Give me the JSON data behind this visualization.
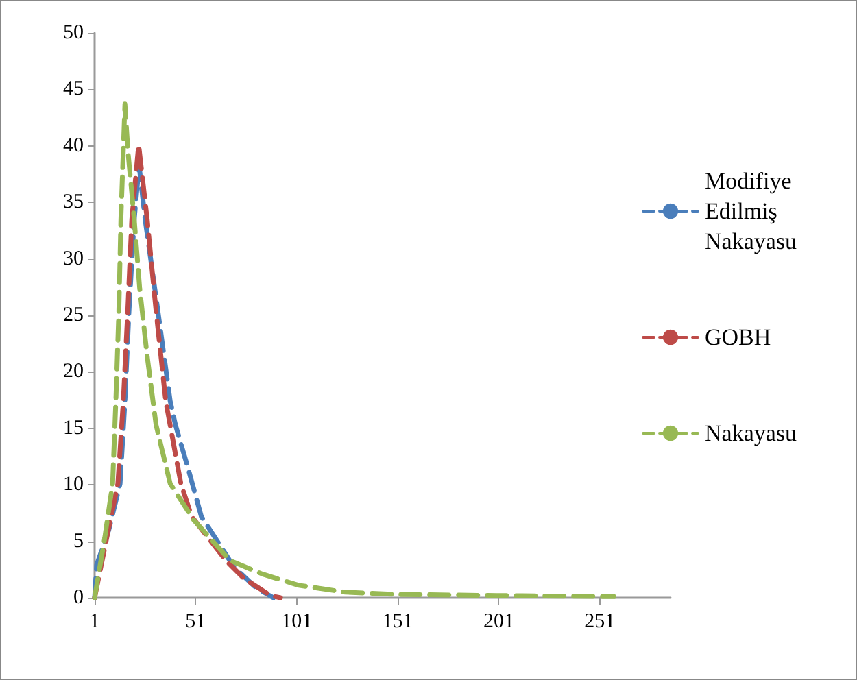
{
  "chart_data": {
    "type": "line",
    "line_style": "dashed",
    "marker": "none",
    "grid": false,
    "legend": "right",
    "xlim": [
      1,
      286
    ],
    "xticks": [
      1,
      51,
      101,
      151,
      201,
      251
    ],
    "ylim": [
      0,
      50
    ],
    "yticks": [
      0,
      5,
      10,
      15,
      20,
      25,
      30,
      35,
      40,
      45,
      50
    ],
    "series": [
      {
        "name": "Modifiye Edilmiş Nakayasu",
        "color": "#4a7ebb",
        "x": [
          1,
          2,
          8,
          13.6,
          16,
          18,
          20.6,
          23,
          26,
          32.3,
          38.4,
          41,
          47.5,
          53.8,
          62.5,
          70,
          80.8,
          89.5
        ],
        "values": [
          0,
          2.9,
          6,
          10.1,
          17.4,
          25.4,
          33.5,
          38.3,
          33.5,
          25.4,
          17.4,
          15.3,
          11.3,
          7.2,
          4.8,
          2.7,
          0.9,
          0
        ]
      },
      {
        "name": "GOBH",
        "color": "#be4b48",
        "x": [
          1,
          7,
          12.5,
          15.2,
          17.4,
          19.4,
          22.8,
          27,
          31.4,
          36.2,
          43.7,
          49,
          66,
          75,
          88,
          93
        ],
        "values": [
          0,
          5.3,
          10.1,
          17.4,
          25.4,
          33.5,
          40.1,
          33.5,
          25.4,
          17.4,
          10.1,
          7.2,
          3.3,
          1.7,
          0.2,
          0
        ]
      },
      {
        "name": "Nakayasu",
        "color": "#98b954",
        "x": [
          1,
          6,
          9.9,
          11.5,
          13,
          14,
          16,
          17.5,
          20.6,
          23.3,
          27,
          31.4,
          38.4,
          50,
          68,
          84,
          102,
          125,
          150,
          200,
          258
        ],
        "values": [
          0,
          5.3,
          10.1,
          17.4,
          25.4,
          33.5,
          43.7,
          39.5,
          33.5,
          27.4,
          21.4,
          15.3,
          10.1,
          6.9,
          3.3,
          2.1,
          1.1,
          0.5,
          0.3,
          0.2,
          0.1
        ]
      }
    ]
  }
}
